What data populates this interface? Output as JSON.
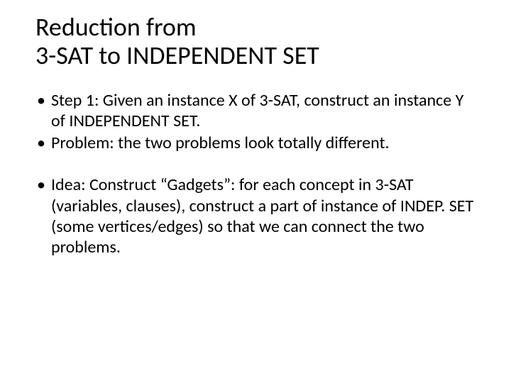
{
  "slide": {
    "background_color": "#ffffff",
    "text_color": "#000000",
    "title": {
      "line1": "Reduction from",
      "line2": "3-SAT to INDEPENDENT SET",
      "fontsize": 36,
      "fontweight": 400
    },
    "bullets": {
      "fontsize": 24,
      "items": [
        "Step 1: Given an instance X of 3-SAT, construct an instance Y of INDEPENDENT SET.",
        "Problem: the two problems look totally different.",
        "Idea: Construct “Gadgets”: for each concept in 3-SAT (variables, clauses), construct a part of instance of INDEP. SET (some vertices/edges) so that we can connect the two problems."
      ]
    }
  }
}
